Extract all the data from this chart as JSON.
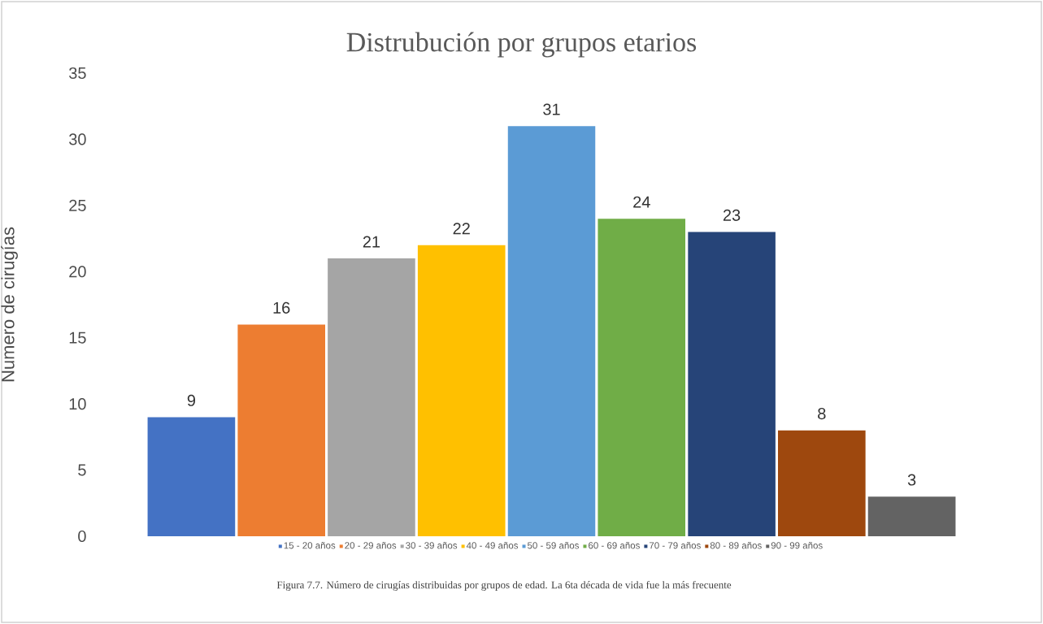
{
  "chart_data": {
    "type": "bar",
    "title": "Distrubución por grupos etarios",
    "ylabel": "Numero de cirugías",
    "annotations": [
      "Figura 7.7. Número de cirugías distribuidas por grupos de edad. La 6ta década de vida fue la más frecuente"
    ],
    "categories": [
      null
    ],
    "series": [
      {
        "name": "15 - 20 años",
        "color": "#4472c4",
        "values": [
          9
        ]
      },
      {
        "name": "20 - 29 años",
        "color": "#ed7d31",
        "values": [
          16
        ]
      },
      {
        "name": "30 - 39 años",
        "color": "#a5a5a5",
        "values": [
          21
        ]
      },
      {
        "name": "40 - 49 años",
        "color": "#ffc000",
        "values": [
          22
        ]
      },
      {
        "name": "50 - 59 años",
        "color": "#5b9bd5",
        "values": [
          31
        ]
      },
      {
        "name": "60 - 69 años",
        "color": "#70ad47",
        "values": [
          24
        ]
      },
      {
        "name": "70 - 79 años",
        "color": "#264478",
        "values": [
          23
        ]
      },
      {
        "name": "80 - 89 años",
        "color": "#9e480e",
        "values": [
          8
        ]
      },
      {
        "name": "90 - 99 años",
        "color": "#636363",
        "values": [
          3
        ]
      }
    ],
    "ylim": [
      0,
      35
    ],
    "yticks": [
      0,
      5,
      10,
      15,
      20,
      25,
      30,
      35
    ],
    "data_labels": true,
    "legend": "bottom"
  }
}
